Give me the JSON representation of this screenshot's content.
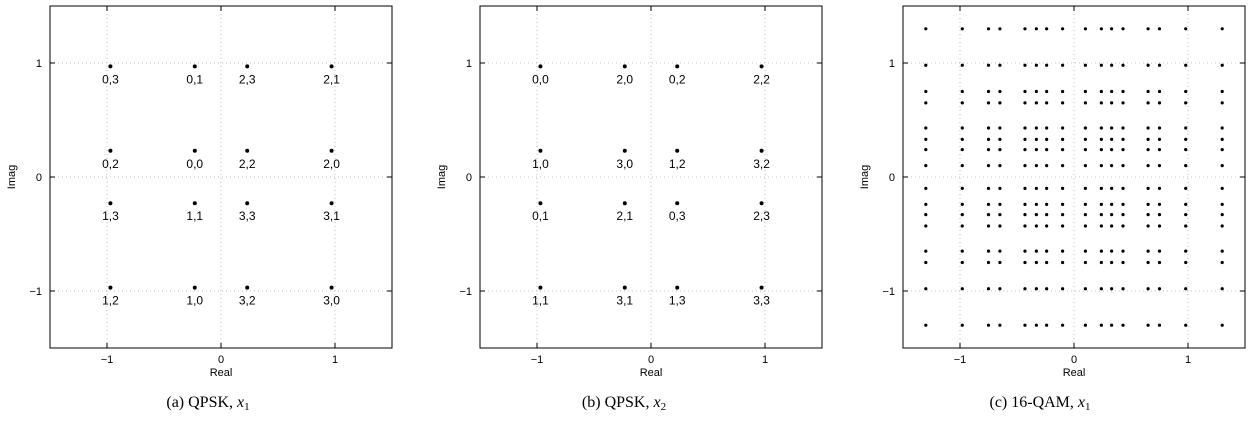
{
  "chart_data": [
    {
      "type": "scatter",
      "caption": {
        "tag": "(a) QPSK,",
        "var": "x",
        "sub": "1"
      },
      "xlabel": "Real",
      "ylabel": "Imag",
      "xlim": [
        -1.5,
        1.5
      ],
      "ylim": [
        -1.5,
        1.5
      ],
      "xticks": [
        -1,
        0,
        1
      ],
      "yticks": [
        -1,
        0,
        1
      ],
      "xtick_labels": [
        "−1",
        "0",
        "1"
      ],
      "ytick_labels": [
        "−1",
        "0",
        "1"
      ],
      "grid": true,
      "points": [
        {
          "x": -0.97,
          "y": 0.97,
          "label": "0,3"
        },
        {
          "x": -0.23,
          "y": 0.97,
          "label": "0,1"
        },
        {
          "x": 0.23,
          "y": 0.97,
          "label": "2,3"
        },
        {
          "x": 0.97,
          "y": 0.97,
          "label": "2,1"
        },
        {
          "x": -0.97,
          "y": 0.23,
          "label": "0,2"
        },
        {
          "x": -0.23,
          "y": 0.23,
          "label": "0,0"
        },
        {
          "x": 0.23,
          "y": 0.23,
          "label": "2,2"
        },
        {
          "x": 0.97,
          "y": 0.23,
          "label": "2,0"
        },
        {
          "x": -0.97,
          "y": -0.23,
          "label": "1,3"
        },
        {
          "x": -0.23,
          "y": -0.23,
          "label": "1,1"
        },
        {
          "x": 0.23,
          "y": -0.23,
          "label": "3,3"
        },
        {
          "x": 0.97,
          "y": -0.23,
          "label": "3,1"
        },
        {
          "x": -0.97,
          "y": -0.97,
          "label": "1,2"
        },
        {
          "x": -0.23,
          "y": -0.97,
          "label": "1,0"
        },
        {
          "x": 0.23,
          "y": -0.97,
          "label": "3,2"
        },
        {
          "x": 0.97,
          "y": -0.97,
          "label": "3,0"
        }
      ]
    },
    {
      "type": "scatter",
      "caption": {
        "tag": "(b) QPSK,",
        "var": "x",
        "sub": "2"
      },
      "xlabel": "Real",
      "ylabel": "Imag",
      "xlim": [
        -1.5,
        1.5
      ],
      "ylim": [
        -1.5,
        1.5
      ],
      "xticks": [
        -1,
        0,
        1
      ],
      "yticks": [
        -1,
        0,
        1
      ],
      "xtick_labels": [
        "−1",
        "0",
        "1"
      ],
      "ytick_labels": [
        "−1",
        "0",
        "1"
      ],
      "grid": true,
      "points": [
        {
          "x": -0.97,
          "y": 0.97,
          "label": "0,0"
        },
        {
          "x": -0.23,
          "y": 0.97,
          "label": "2,0"
        },
        {
          "x": 0.23,
          "y": 0.97,
          "label": "0,2"
        },
        {
          "x": 0.97,
          "y": 0.97,
          "label": "2,2"
        },
        {
          "x": -0.97,
          "y": 0.23,
          "label": "1,0"
        },
        {
          "x": -0.23,
          "y": 0.23,
          "label": "3,0"
        },
        {
          "x": 0.23,
          "y": 0.23,
          "label": "1,2"
        },
        {
          "x": 0.97,
          "y": 0.23,
          "label": "3,2"
        },
        {
          "x": -0.97,
          "y": -0.23,
          "label": "0,1"
        },
        {
          "x": -0.23,
          "y": -0.23,
          "label": "2,1"
        },
        {
          "x": 0.23,
          "y": -0.23,
          "label": "0,3"
        },
        {
          "x": 0.97,
          "y": -0.23,
          "label": "2,3"
        },
        {
          "x": -0.97,
          "y": -0.97,
          "label": "1,1"
        },
        {
          "x": -0.23,
          "y": -0.97,
          "label": "3,1"
        },
        {
          "x": 0.23,
          "y": -0.97,
          "label": "1,3"
        },
        {
          "x": 0.97,
          "y": -0.97,
          "label": "3,3"
        }
      ]
    },
    {
      "type": "scatter",
      "caption": {
        "tag": "(c) 16-QAM,",
        "var": "x",
        "sub": "1"
      },
      "xlabel": "Real",
      "ylabel": "Imag",
      "xlim": [
        -1.5,
        1.5
      ],
      "ylim": [
        -1.5,
        1.5
      ],
      "xticks": [
        -1,
        0,
        1
      ],
      "yticks": [
        -1,
        0,
        1
      ],
      "xtick_labels": [
        "−1",
        "0",
        "1"
      ],
      "ytick_labels": [
        "−1",
        "0",
        "1"
      ],
      "grid": true,
      "grid_levels": [
        -1.3,
        -0.98,
        -0.75,
        -0.65,
        -0.43,
        -0.33,
        -0.24,
        -0.1,
        0.1,
        0.24,
        0.33,
        0.43,
        0.65,
        0.75,
        0.98,
        1.3
      ]
    }
  ]
}
